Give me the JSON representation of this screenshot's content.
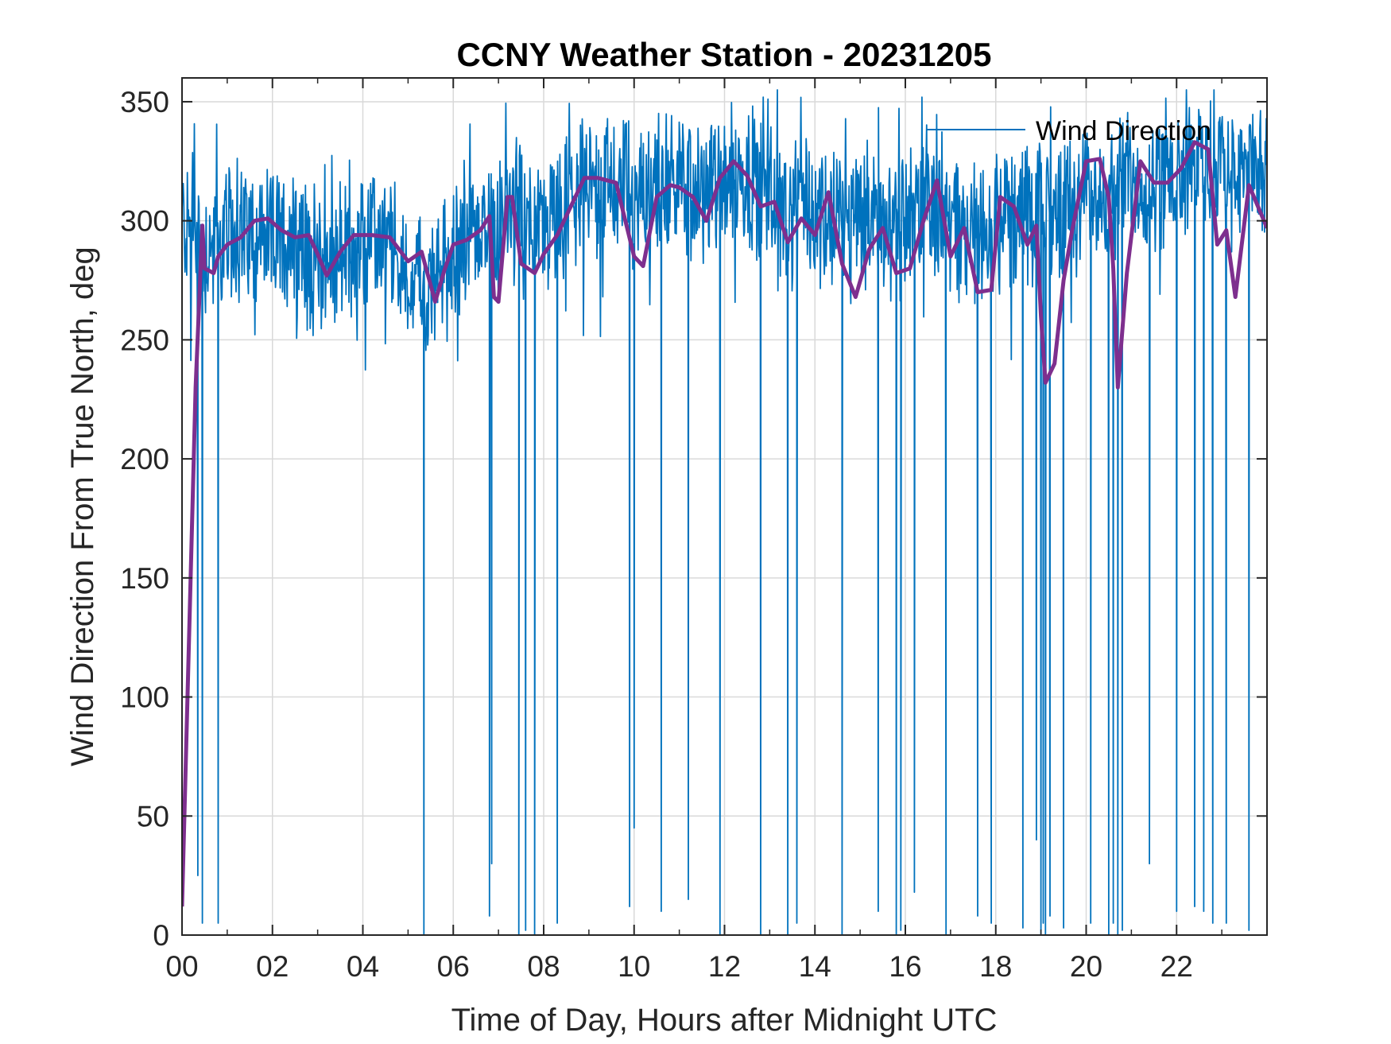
{
  "chart_data": {
    "type": "line",
    "title": "CCNY Weather Station - 20231205",
    "xlabel": "Time of Day, Hours after Midnight UTC",
    "ylabel": "Wind Direction From True North, deg",
    "xlim": [
      0,
      24
    ],
    "ylim": [
      0,
      360
    ],
    "x_ticks": [
      0,
      2,
      4,
      6,
      8,
      10,
      12,
      14,
      16,
      18,
      20,
      22
    ],
    "x_tick_labels": [
      "00",
      "02",
      "04",
      "06",
      "08",
      "10",
      "12",
      "14",
      "16",
      "18",
      "20",
      "22"
    ],
    "y_ticks": [
      0,
      50,
      100,
      150,
      200,
      250,
      300,
      350
    ],
    "y_tick_labels": [
      "0",
      "50",
      "100",
      "150",
      "200",
      "250",
      "300",
      "350"
    ],
    "grid": true,
    "legend": {
      "location": "top-right",
      "entries": [
        "Wind Direction"
      ]
    },
    "series": [
      {
        "name": "Wind Direction",
        "color": "#0072BD",
        "kind": "raw",
        "baseline": [
          [
            0,
            300
          ],
          [
            0.5,
            288
          ],
          [
            1,
            293
          ],
          [
            1.5,
            295
          ],
          [
            2,
            292
          ],
          [
            2.5,
            293
          ],
          [
            3,
            282
          ],
          [
            3.5,
            285
          ],
          [
            4,
            290
          ],
          [
            4.5,
            290
          ],
          [
            5,
            280
          ],
          [
            5.5,
            270
          ],
          [
            6,
            285
          ],
          [
            6.5,
            293
          ],
          [
            7,
            300
          ],
          [
            7.5,
            305
          ],
          [
            8,
            295
          ],
          [
            8.5,
            305
          ],
          [
            9,
            315
          ],
          [
            9.5,
            317
          ],
          [
            10,
            310
          ],
          [
            10.5,
            316
          ],
          [
            11,
            316
          ],
          [
            11.5,
            312
          ],
          [
            12,
            318
          ],
          [
            12.5,
            318
          ],
          [
            13,
            312
          ],
          [
            13.5,
            300
          ],
          [
            14,
            305
          ],
          [
            14.5,
            300
          ],
          [
            15,
            305
          ],
          [
            15.5,
            300
          ],
          [
            16,
            296
          ],
          [
            16.5,
            310
          ],
          [
            17,
            300
          ],
          [
            17.5,
            295
          ],
          [
            18,
            300
          ],
          [
            18.5,
            302
          ],
          [
            19,
            300
          ],
          [
            19.5,
            305
          ],
          [
            20,
            312
          ],
          [
            20.5,
            310
          ],
          [
            21,
            318
          ],
          [
            21.5,
            315
          ],
          [
            22,
            325
          ],
          [
            22.5,
            322
          ],
          [
            23,
            318
          ],
          [
            23.5,
            322
          ],
          [
            24,
            318
          ]
        ],
        "noise_amplitude": 25,
        "dropouts": [
          [
            0.35,
            25
          ],
          [
            0.45,
            5
          ],
          [
            0.8,
            5
          ],
          [
            5.35,
            0
          ],
          [
            6.8,
            8
          ],
          [
            6.85,
            30
          ],
          [
            7.45,
            0
          ],
          [
            7.6,
            2
          ],
          [
            7.8,
            0
          ],
          [
            8.3,
            5
          ],
          [
            9.9,
            12
          ],
          [
            10.0,
            45
          ],
          [
            10.6,
            10
          ],
          [
            11.2,
            15
          ],
          [
            11.9,
            0
          ],
          [
            12.8,
            0
          ],
          [
            13.4,
            0
          ],
          [
            13.6,
            5
          ],
          [
            14.6,
            0
          ],
          [
            15.4,
            10
          ],
          [
            15.8,
            0
          ],
          [
            15.9,
            2
          ],
          [
            16.2,
            18
          ],
          [
            16.9,
            0
          ],
          [
            17.6,
            8
          ],
          [
            17.9,
            5
          ],
          [
            18.6,
            3
          ],
          [
            18.9,
            40
          ],
          [
            19.0,
            0
          ],
          [
            19.05,
            5
          ],
          [
            19.1,
            0
          ],
          [
            19.2,
            8
          ],
          [
            19.5,
            3
          ],
          [
            20.1,
            5
          ],
          [
            20.5,
            0
          ],
          [
            20.6,
            5
          ],
          [
            20.7,
            0
          ],
          [
            20.8,
            2
          ],
          [
            21.4,
            30
          ],
          [
            22.0,
            10
          ],
          [
            22.4,
            12
          ],
          [
            22.6,
            10
          ],
          [
            22.8,
            5
          ],
          [
            23.1,
            5
          ],
          [
            23.6,
            2
          ]
        ]
      },
      {
        "name": "",
        "color": "#7E2F8E",
        "kind": "smoothed",
        "x": [
          0,
          0.3,
          0.45,
          0.5,
          0.6,
          0.7,
          0.8,
          1.0,
          1.3,
          1.6,
          1.9,
          2.2,
          2.5,
          2.8,
          3.0,
          3.2,
          3.5,
          3.8,
          4.2,
          4.6,
          5.0,
          5.3,
          5.6,
          5.8,
          6.0,
          6.3,
          6.6,
          6.8,
          6.9,
          7.0,
          7.2,
          7.3,
          7.5,
          7.8,
          8.0,
          8.3,
          8.6,
          8.9,
          9.2,
          9.6,
          10.0,
          10.2,
          10.5,
          10.8,
          11.0,
          11.3,
          11.6,
          11.9,
          12.2,
          12.5,
          12.8,
          13.1,
          13.4,
          13.7,
          14.0,
          14.3,
          14.6,
          14.9,
          15.2,
          15.5,
          15.8,
          16.1,
          16.4,
          16.7,
          17.0,
          17.3,
          17.6,
          17.9,
          18.1,
          18.4,
          18.7,
          18.9,
          19.0,
          19.1,
          19.3,
          19.5,
          19.7,
          20.0,
          20.3,
          20.5,
          20.6,
          20.7,
          20.9,
          21.2,
          21.5,
          21.8,
          22.1,
          22.4,
          22.7,
          22.9,
          23.1,
          23.3,
          23.6,
          24.0
        ],
        "y": [
          12,
          230,
          298,
          280,
          279,
          278,
          285,
          290,
          293,
          300,
          301,
          296,
          293,
          294,
          286,
          277,
          287,
          294,
          294,
          293,
          283,
          287,
          266,
          279,
          290,
          292,
          296,
          302,
          268,
          266,
          310,
          310,
          282,
          278,
          286,
          294,
          306,
          318,
          318,
          316,
          285,
          281,
          310,
          315,
          314,
          310,
          300,
          318,
          325,
          319,
          306,
          308,
          291,
          301,
          294,
          312,
          282,
          268,
          288,
          297,
          278,
          280,
          300,
          317,
          285,
          297,
          270,
          271,
          310,
          306,
          290,
          298,
          260,
          232,
          240,
          275,
          297,
          325,
          326,
          310,
          280,
          230,
          278,
          325,
          316,
          316,
          322,
          333,
          330,
          290,
          296,
          268,
          315,
          297
        ]
      }
    ]
  }
}
